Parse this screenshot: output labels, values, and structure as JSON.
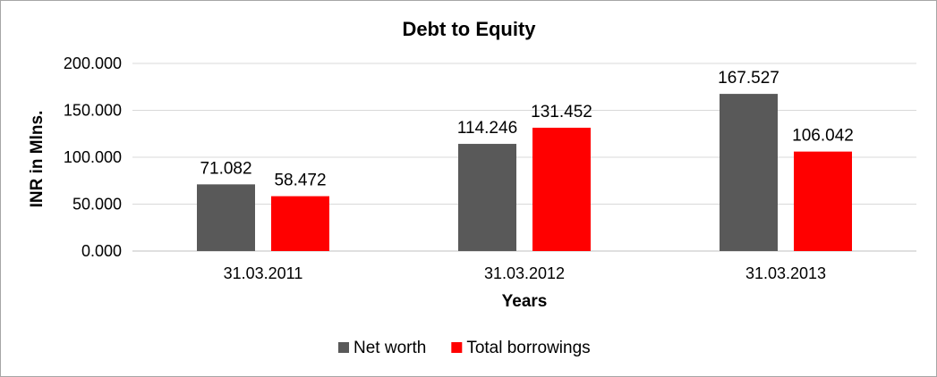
{
  "chart_data": {
    "type": "bar",
    "title": "Debt to Equity",
    "xlabel": "Years",
    "ylabel": "INR in Mlns.",
    "categories": [
      "31.03.2011",
      "31.03.2012",
      "31.03.2013"
    ],
    "series": [
      {
        "name": "Net worth",
        "color": "#595959",
        "values": [
          71.082,
          114.246,
          167.527
        ],
        "labels": [
          "71.082",
          "114.246",
          "167.527"
        ]
      },
      {
        "name": "Total borrowings",
        "color": "#ff0000",
        "values": [
          58.472,
          131.452,
          106.042
        ],
        "labels": [
          "58.472",
          "131.452",
          "106.042"
        ]
      }
    ],
    "ylim": [
      0,
      200
    ],
    "yticks": [
      0,
      50,
      100,
      150,
      200
    ],
    "ytick_labels": [
      "0.000",
      "50.000",
      "100.000",
      "150.000",
      "200.000"
    ],
    "grid": true,
    "legend_position": "bottom"
  }
}
